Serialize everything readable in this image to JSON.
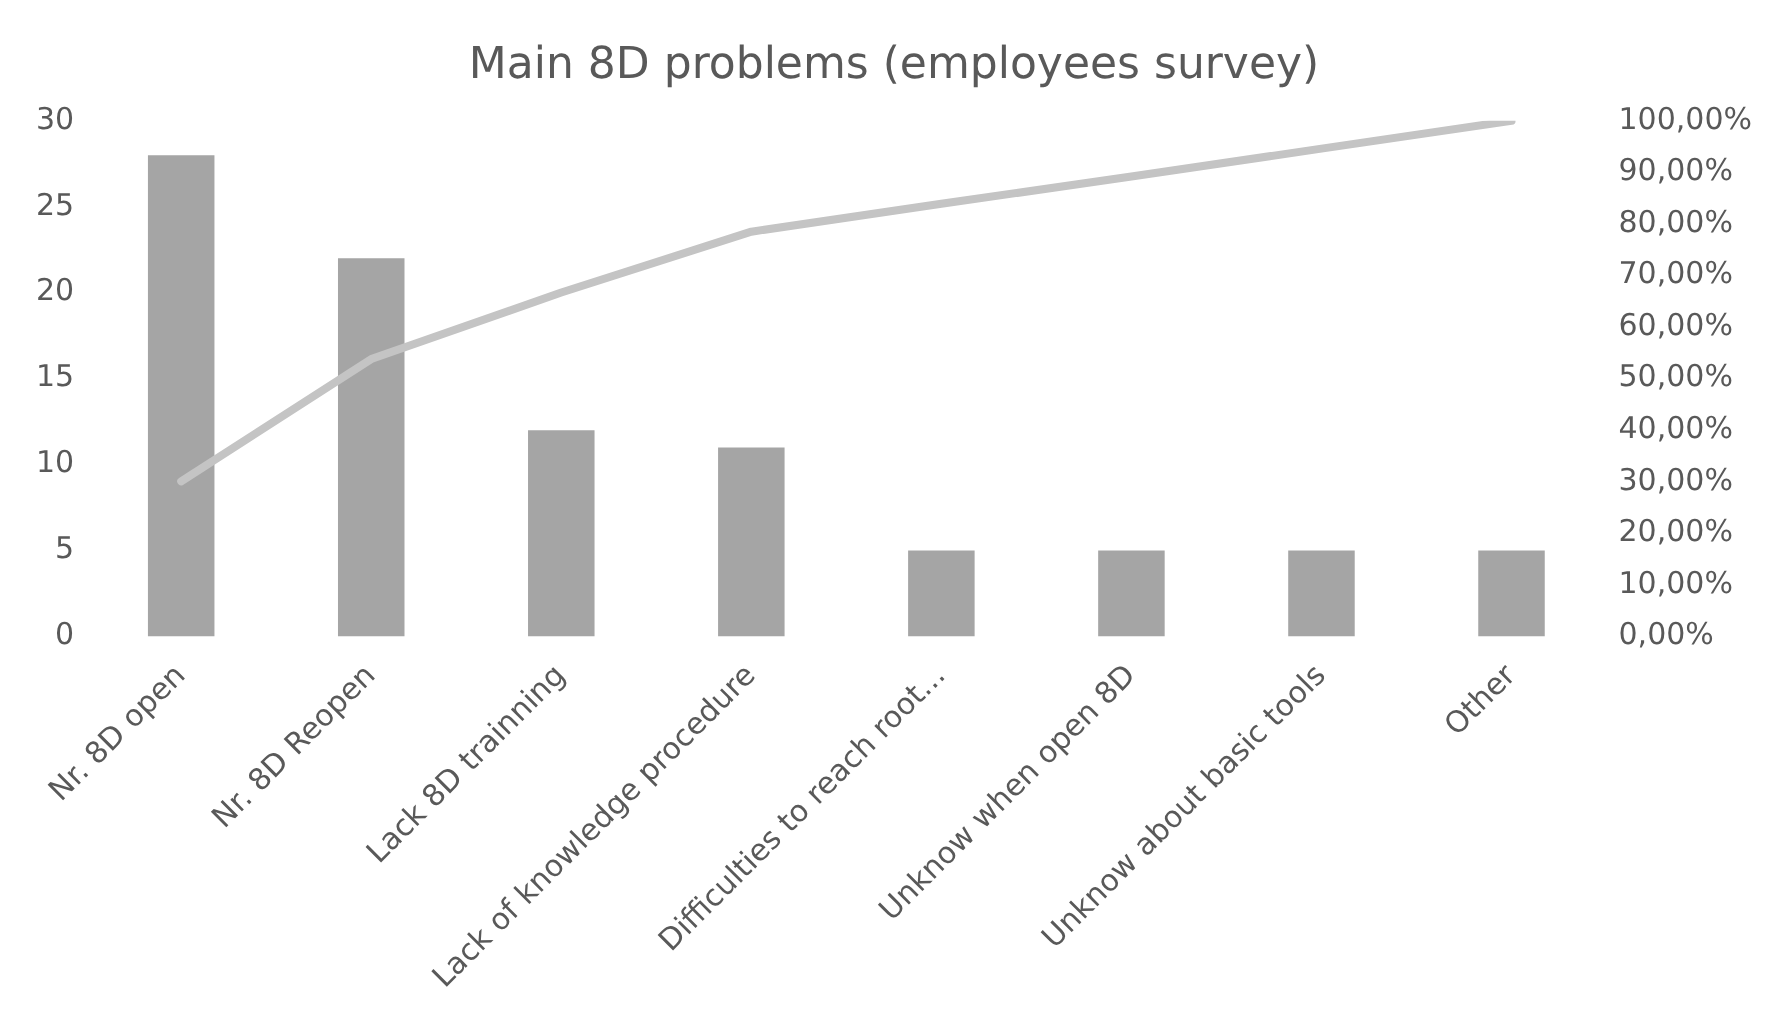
{
  "chart_data": {
    "type": "bar",
    "title": "Main 8D problems (employees survey)",
    "categories": [
      "Nr. 8D open",
      "Nr. 8D Reopen",
      "Lack 8D trainning",
      "Lack of knowledge procedure",
      "Difficulties to reach root...",
      "Unknow when open 8D",
      "Unknow about basic tools",
      "Other"
    ],
    "series": [
      {
        "color": "#a5a5a5",
        "values": [
          28,
          22,
          12,
          11,
          5,
          5,
          5,
          5
        ]
      },
      {
        "type": "line",
        "axis": "y2",
        "color": "#c4c4c4",
        "values": [
          30.1,
          53.8,
          66.7,
          78.5,
          83.9,
          89.2,
          94.6,
          100
        ]
      }
    ],
    "ylim": [
      0,
      30
    ],
    "yticks": [
      0,
      5,
      10,
      15,
      20,
      25,
      30
    ],
    "y2lim": [
      0,
      100
    ],
    "y2ticks": [
      {
        "value": 0,
        "label": "0,00%"
      },
      {
        "value": 10,
        "label": "10,00%"
      },
      {
        "value": 20,
        "label": "20,00%"
      },
      {
        "value": 30,
        "label": "30,00%"
      },
      {
        "value": 40,
        "label": "40,00%"
      },
      {
        "value": 50,
        "label": "50,00%"
      },
      {
        "value": 60,
        "label": "60,00%"
      },
      {
        "value": 70,
        "label": "70,00%"
      },
      {
        "value": 80,
        "label": "80,00%"
      },
      {
        "value": 90,
        "label": "90,00%"
      },
      {
        "value": 100,
        "label": "100,00%"
      }
    ],
    "grid": false,
    "legend": false,
    "marker": "none"
  }
}
